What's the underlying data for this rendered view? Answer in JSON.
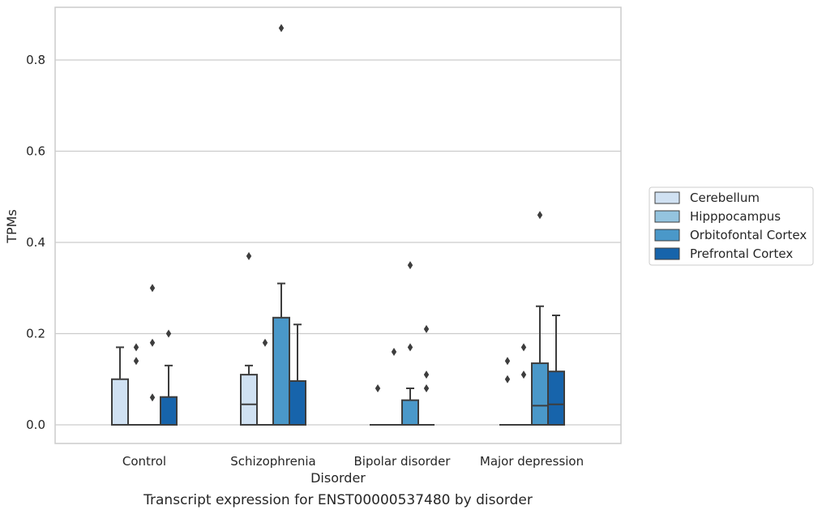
{
  "chart_data": {
    "type": "box",
    "caption": "Transcript expression for ENST00000537480 by disorder",
    "xlabel": "Disorder",
    "ylabel": "TPMs",
    "ylim": [
      -0.043,
      0.915
    ],
    "yticks": [
      0.0,
      0.2,
      0.4,
      0.6,
      0.8
    ],
    "ytick_labels": [
      "0.0",
      "0.2",
      "0.4",
      "0.6",
      "0.8"
    ],
    "grid": "horizontal",
    "legend_position": "right",
    "categories": [
      "Control",
      "Schizophrenia",
      "Bipolar disorder",
      "Major depression"
    ],
    "series": [
      {
        "name": "Cerebellum",
        "color": "#d0e1f2",
        "boxes": [
          {
            "q1": 0.0,
            "median": 0.0,
            "q3": 0.1,
            "whisker_low": 0.0,
            "whisker_high": 0.17,
            "outliers": []
          },
          {
            "q1": 0.0,
            "median": 0.045,
            "q3": 0.11,
            "whisker_low": 0.0,
            "whisker_high": 0.13,
            "outliers": [
              0.37
            ]
          },
          {
            "q1": 0.0,
            "median": 0.0,
            "q3": 0.0,
            "whisker_low": 0.0,
            "whisker_high": 0.0,
            "outliers": [
              0.08
            ]
          },
          {
            "q1": 0.0,
            "median": 0.0,
            "q3": 0.0,
            "whisker_low": 0.0,
            "whisker_high": 0.0,
            "outliers": [
              0.1,
              0.14
            ]
          }
        ]
      },
      {
        "name": "Hipppocampus",
        "color": "#94c4df",
        "boxes": [
          {
            "q1": 0.0,
            "median": 0.0,
            "q3": 0.0,
            "whisker_low": 0.0,
            "whisker_high": 0.0,
            "outliers": [
              0.14,
              0.17
            ]
          },
          {
            "q1": 0.0,
            "median": 0.0,
            "q3": 0.0,
            "whisker_low": 0.0,
            "whisker_high": 0.0,
            "outliers": [
              0.18
            ]
          },
          {
            "q1": 0.0,
            "median": 0.0,
            "q3": 0.0,
            "whisker_low": 0.0,
            "whisker_high": 0.0,
            "outliers": [
              0.16
            ]
          },
          {
            "q1": 0.0,
            "median": 0.0,
            "q3": 0.0,
            "whisker_low": 0.0,
            "whisker_high": 0.0,
            "outliers": [
              0.11,
              0.17
            ]
          }
        ]
      },
      {
        "name": "Orbitofontal Cortex",
        "color": "#4a98c9",
        "boxes": [
          {
            "q1": 0.0,
            "median": 0.0,
            "q3": 0.0,
            "whisker_low": 0.0,
            "whisker_high": 0.0,
            "outliers": [
              0.06,
              0.18,
              0.3
            ]
          },
          {
            "q1": 0.0,
            "median": 0.0,
            "q3": 0.235,
            "whisker_low": 0.0,
            "whisker_high": 0.31,
            "outliers": [
              0.87
            ]
          },
          {
            "q1": 0.0,
            "median": 0.0,
            "q3": 0.054,
            "whisker_low": 0.0,
            "whisker_high": 0.08,
            "outliers": [
              0.17,
              0.35
            ]
          },
          {
            "q1": 0.0,
            "median": 0.042,
            "q3": 0.135,
            "whisker_low": 0.0,
            "whisker_high": 0.26,
            "outliers": [
              0.46
            ]
          }
        ]
      },
      {
        "name": "Prefrontal Cortex",
        "color": "#1764ab",
        "boxes": [
          {
            "q1": 0.0,
            "median": 0.0,
            "q3": 0.061,
            "whisker_low": 0.0,
            "whisker_high": 0.13,
            "outliers": [
              0.2
            ]
          },
          {
            "q1": 0.0,
            "median": 0.0,
            "q3": 0.096,
            "whisker_low": 0.0,
            "whisker_high": 0.22,
            "outliers": []
          },
          {
            "q1": 0.0,
            "median": 0.0,
            "q3": 0.0,
            "whisker_low": 0.0,
            "whisker_high": 0.0,
            "outliers": [
              0.08,
              0.11,
              0.21
            ]
          },
          {
            "q1": 0.0,
            "median": 0.045,
            "q3": 0.117,
            "whisker_low": 0.0,
            "whisker_high": 0.24,
            "outliers": []
          }
        ]
      }
    ]
  }
}
